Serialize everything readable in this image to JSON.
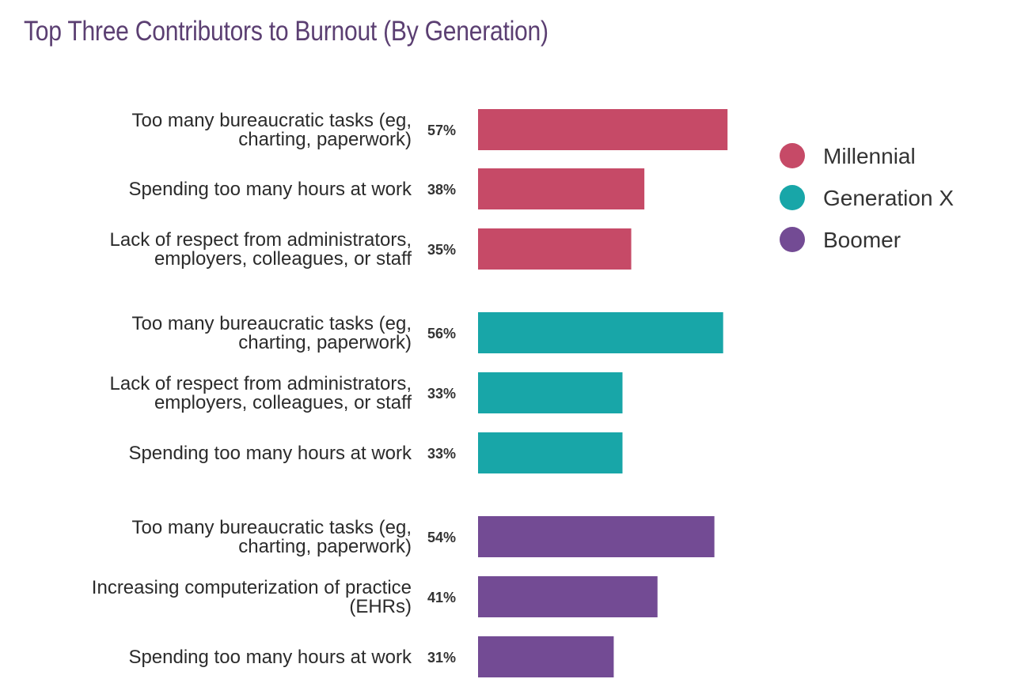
{
  "chart_data": {
    "type": "bar",
    "orientation": "horizontal",
    "title": "Top Three Contributors to Burnout (By Generation)",
    "xlabel": "",
    "ylabel": "",
    "xlim": [
      0,
      100
    ],
    "grid": false,
    "legend_position": "right",
    "groups": [
      {
        "name": "Millennial",
        "color": "#c64a67",
        "items": [
          {
            "label": [
              "Too many bureaucratic tasks (eg,",
              "charting, paperwork)"
            ],
            "value": 57,
            "value_label": "57%"
          },
          {
            "label": [
              "Spending too many hours at work"
            ],
            "value": 38,
            "value_label": "38%"
          },
          {
            "label": [
              "Lack of respect from administrators,",
              "employers, colleagues, or staff"
            ],
            "value": 35,
            "value_label": "35%"
          }
        ]
      },
      {
        "name": "Generation X",
        "color": "#18a6a8",
        "items": [
          {
            "label": [
              "Too many bureaucratic tasks (eg,",
              "charting, paperwork)"
            ],
            "value": 56,
            "value_label": "56%"
          },
          {
            "label": [
              "Lack of respect from administrators,",
              "employers, colleagues, or staff"
            ],
            "value": 33,
            "value_label": "33%"
          },
          {
            "label": [
              "Spending too many hours at work"
            ],
            "value": 33,
            "value_label": "33%"
          }
        ]
      },
      {
        "name": "Boomer",
        "color": "#734b94",
        "items": [
          {
            "label": [
              "Too many bureaucratic tasks (eg,",
              "charting, paperwork)"
            ],
            "value": 54,
            "value_label": "54%"
          },
          {
            "label": [
              "Increasing computerization of practice",
              "(EHRs)"
            ],
            "value": 41,
            "value_label": "41%"
          },
          {
            "label": [
              "Spending too many hours at work"
            ],
            "value": 31,
            "value_label": "31%"
          }
        ]
      }
    ]
  }
}
